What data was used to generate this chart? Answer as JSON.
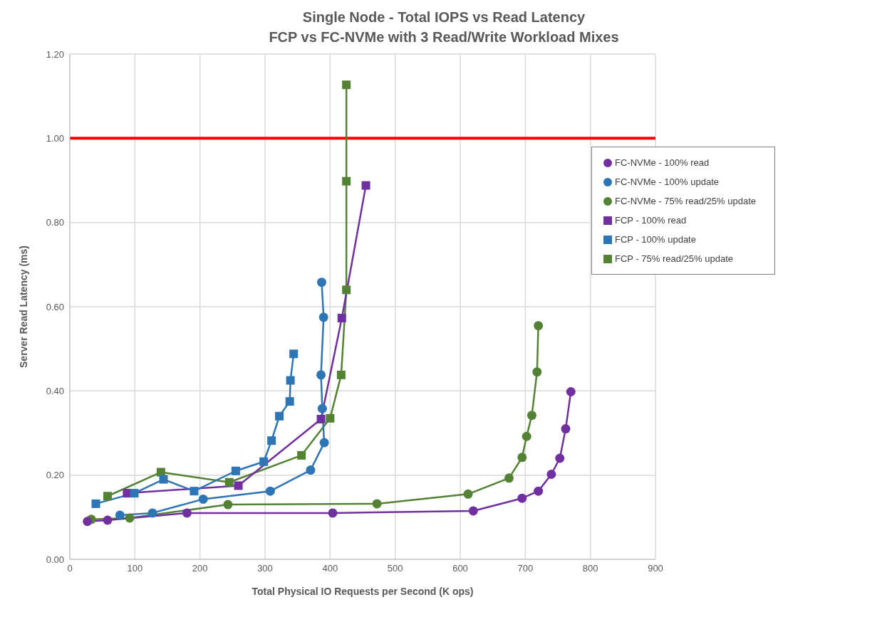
{
  "chart_data": {
    "type": "line",
    "title": "Single Node - Total IOPS vs Read Latency",
    "subtitle": "FCP vs FC-NVMe with 3 Read/Write Workload Mixes",
    "xlabel": "Total Physical IO Requests per Second (K ops)",
    "ylabel": "Server Read Latency (ms)",
    "xlim": [
      0,
      900
    ],
    "xticks": [
      0,
      100,
      200,
      300,
      400,
      500,
      600,
      700,
      800,
      900
    ],
    "ylim": [
      0,
      1.2
    ],
    "yticks": [
      {
        "value": 0,
        "label": "0.00"
      },
      {
        "value": 0.2,
        "label": "0.20"
      },
      {
        "value": 0.4,
        "label": "0.40"
      },
      {
        "value": 0.6,
        "label": "0.60"
      },
      {
        "value": 0.8,
        "label": "0.80"
      },
      {
        "value": 1,
        "label": "1.00"
      },
      {
        "value": 1.2,
        "label": "1.20"
      }
    ],
    "grid": true,
    "legend": "top right",
    "line_style": "solid",
    "ref_lines": [
      {
        "axis": "y",
        "value": 1,
        "color": "#ff0000"
      }
    ],
    "series": [
      {
        "name": "FCP - 75% read/25% update",
        "color": "#548235",
        "marker": "square",
        "x": [
          58,
          140,
          245,
          356,
          400,
          417,
          425,
          425,
          425
        ],
        "values": [
          0.15,
          0.207,
          0.183,
          0.247,
          0.335,
          0.438,
          0.64,
          0.898,
          1.127
        ]
      },
      {
        "name": "FC-NVMe - 75% read/25% update",
        "color": "#548235",
        "marker": "circle",
        "x": [
          33,
          92,
          243,
          472,
          612,
          675,
          695,
          702,
          710,
          718,
          720
        ],
        "values": [
          0.095,
          0.098,
          0.13,
          0.132,
          0.155,
          0.193,
          0.242,
          0.292,
          0.342,
          0.445,
          0.555
        ]
      },
      {
        "name": "FCP - 100% read",
        "color": "#7030a0",
        "marker": "square",
        "x": [
          88,
          259,
          386,
          418,
          455
        ],
        "values": [
          0.157,
          0.175,
          0.333,
          0.573,
          0.888
        ]
      },
      {
        "name": "FC-NVMe - 100% read",
        "color": "#7030a0",
        "marker": "circle",
        "x": [
          27,
          58,
          180,
          404,
          620,
          695,
          720,
          740,
          753,
          762,
          770
        ],
        "values": [
          0.09,
          0.093,
          0.11,
          0.11,
          0.115,
          0.145,
          0.162,
          0.202,
          0.24,
          0.31,
          0.398
        ]
      },
      {
        "name": "FCP - 100% update",
        "color": "#2e75b6",
        "marker": "square",
        "x": [
          40,
          99,
          144,
          191,
          255,
          298,
          310,
          322,
          338,
          339,
          344
        ],
        "values": [
          0.132,
          0.157,
          0.19,
          0.162,
          0.21,
          0.232,
          0.282,
          0.34,
          0.375,
          0.425,
          0.488
        ]
      },
      {
        "name": "FC-NVMe - 100% update",
        "color": "#2e75b6",
        "marker": "circle",
        "x": [
          77,
          127,
          205,
          308,
          370,
          391,
          388,
          386,
          390,
          387
        ],
        "values": [
          0.105,
          0.11,
          0.143,
          0.162,
          0.212,
          0.277,
          0.358,
          0.438,
          0.575,
          0.658
        ]
      }
    ]
  }
}
